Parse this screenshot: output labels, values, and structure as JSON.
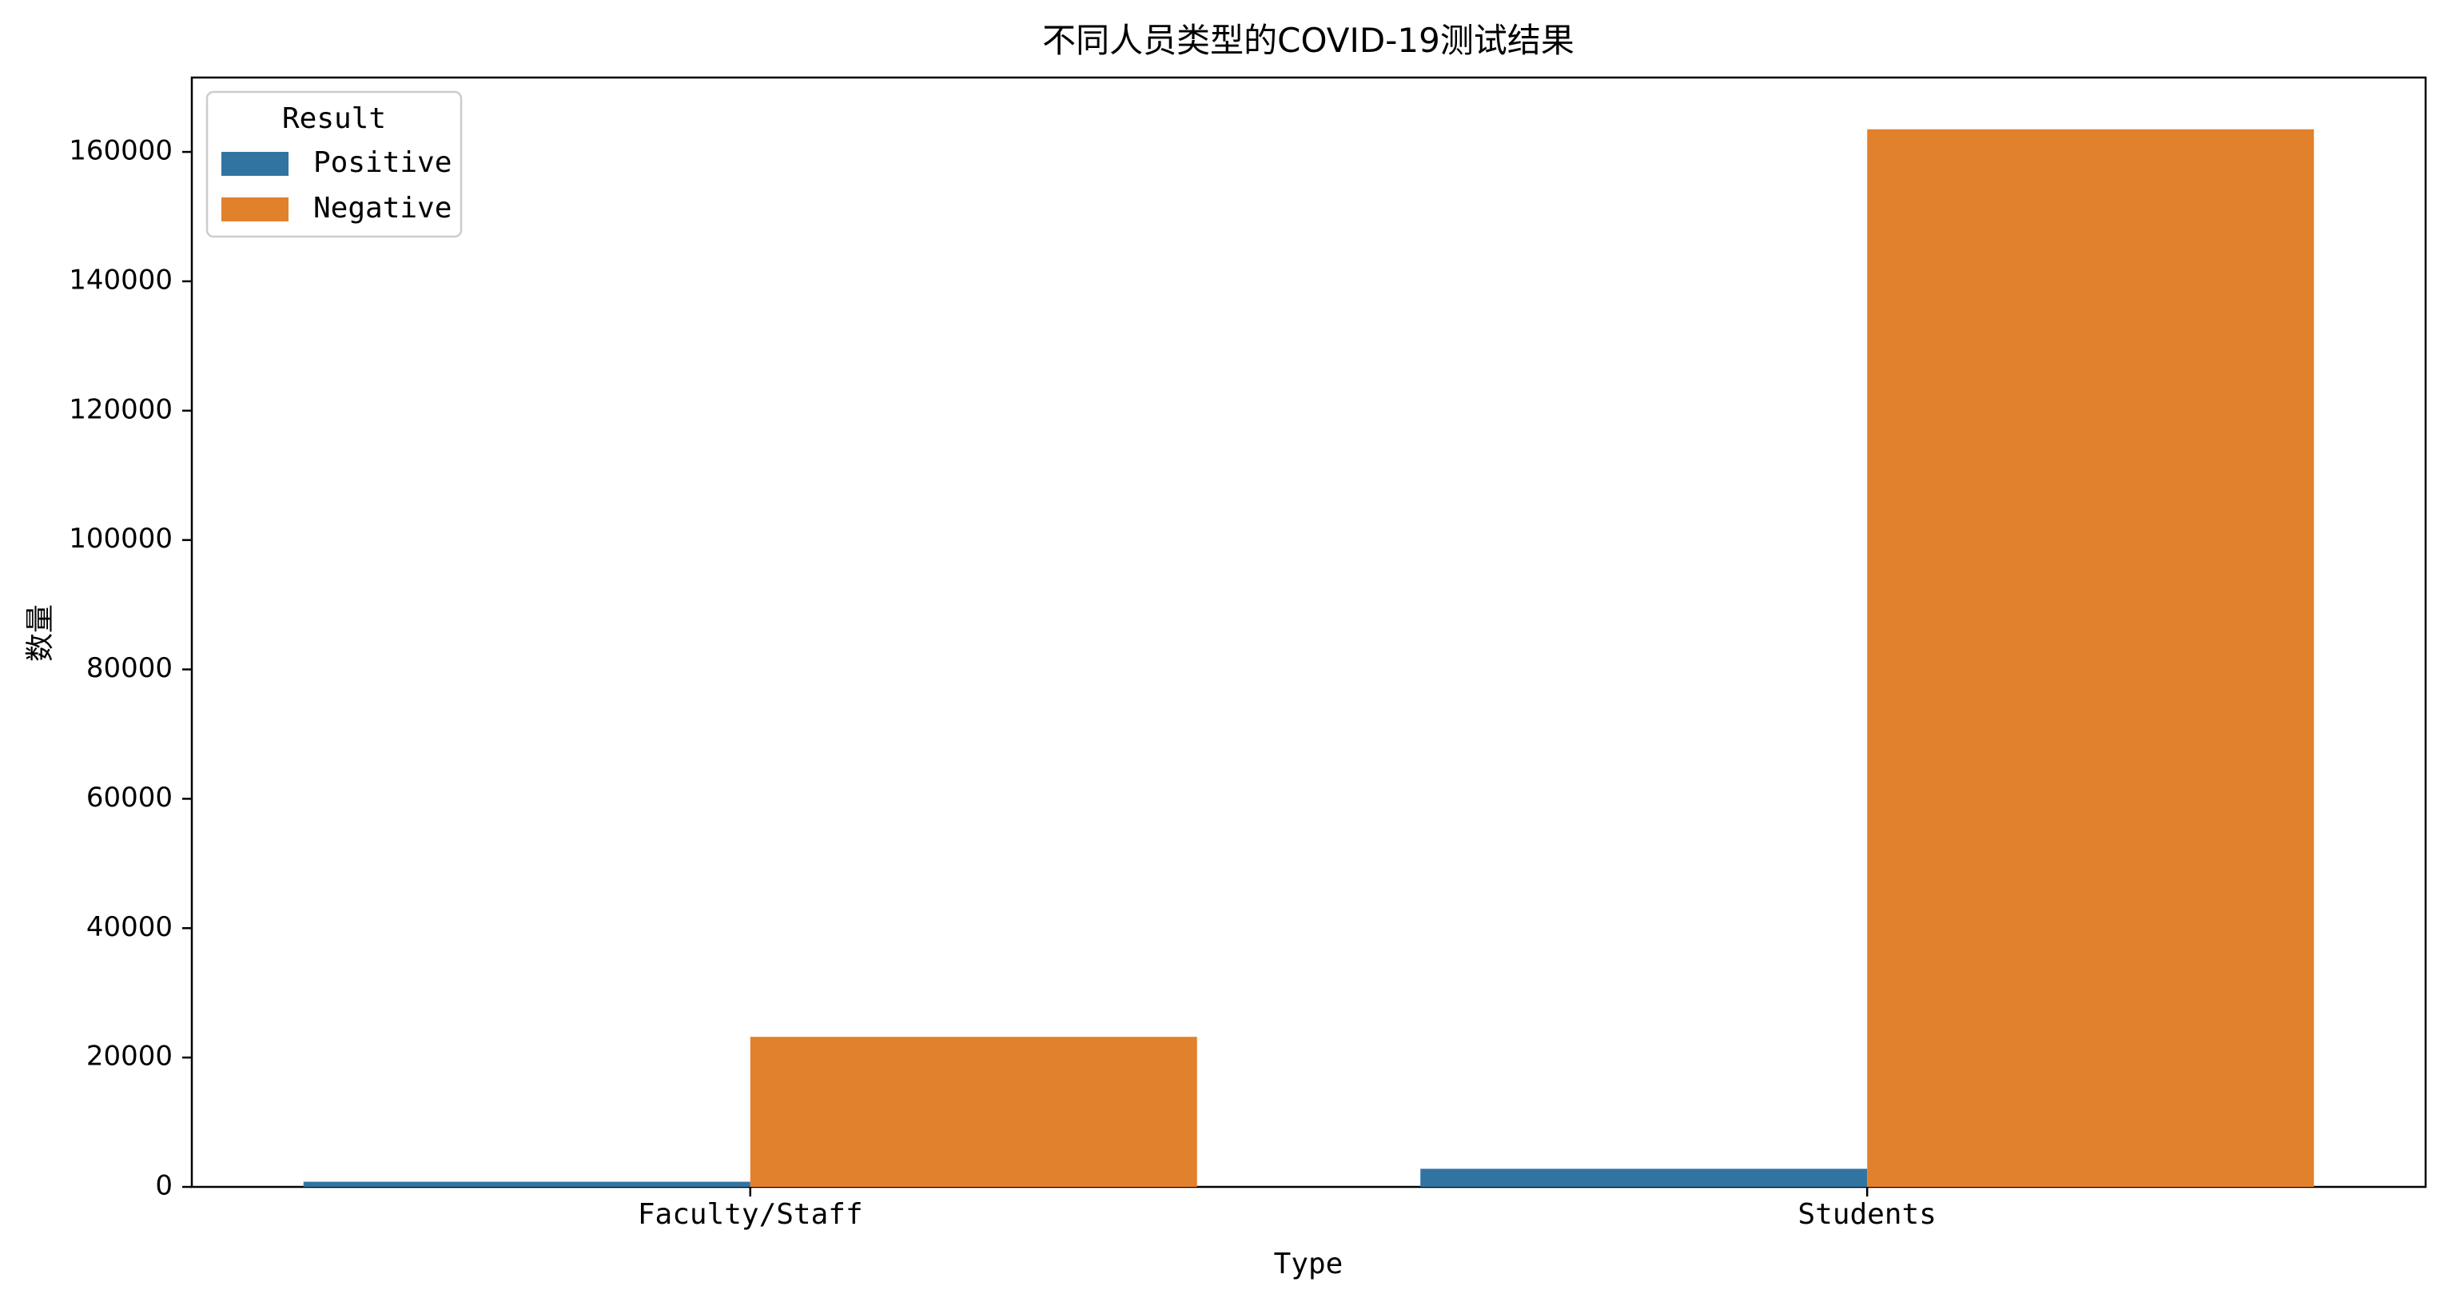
{
  "chart_data": {
    "type": "bar",
    "title": "不同人员类型的COVID-19测试结果",
    "xlabel": "Type",
    "ylabel": "数量",
    "categories": [
      "Faculty/Staff",
      "Students"
    ],
    "series": [
      {
        "name": "Positive",
        "values": [
          800,
          2800
        ],
        "color": "#3274a1"
      },
      {
        "name": "Negative",
        "values": [
          23200,
          163500
        ],
        "color": "#e1812c"
      }
    ],
    "ylim": [
      0,
      171500
    ],
    "yticks": [
      0,
      20000,
      40000,
      60000,
      80000,
      100000,
      120000,
      140000,
      160000
    ],
    "grid": false,
    "legend": {
      "title": "Result",
      "placement": "top-left"
    }
  }
}
